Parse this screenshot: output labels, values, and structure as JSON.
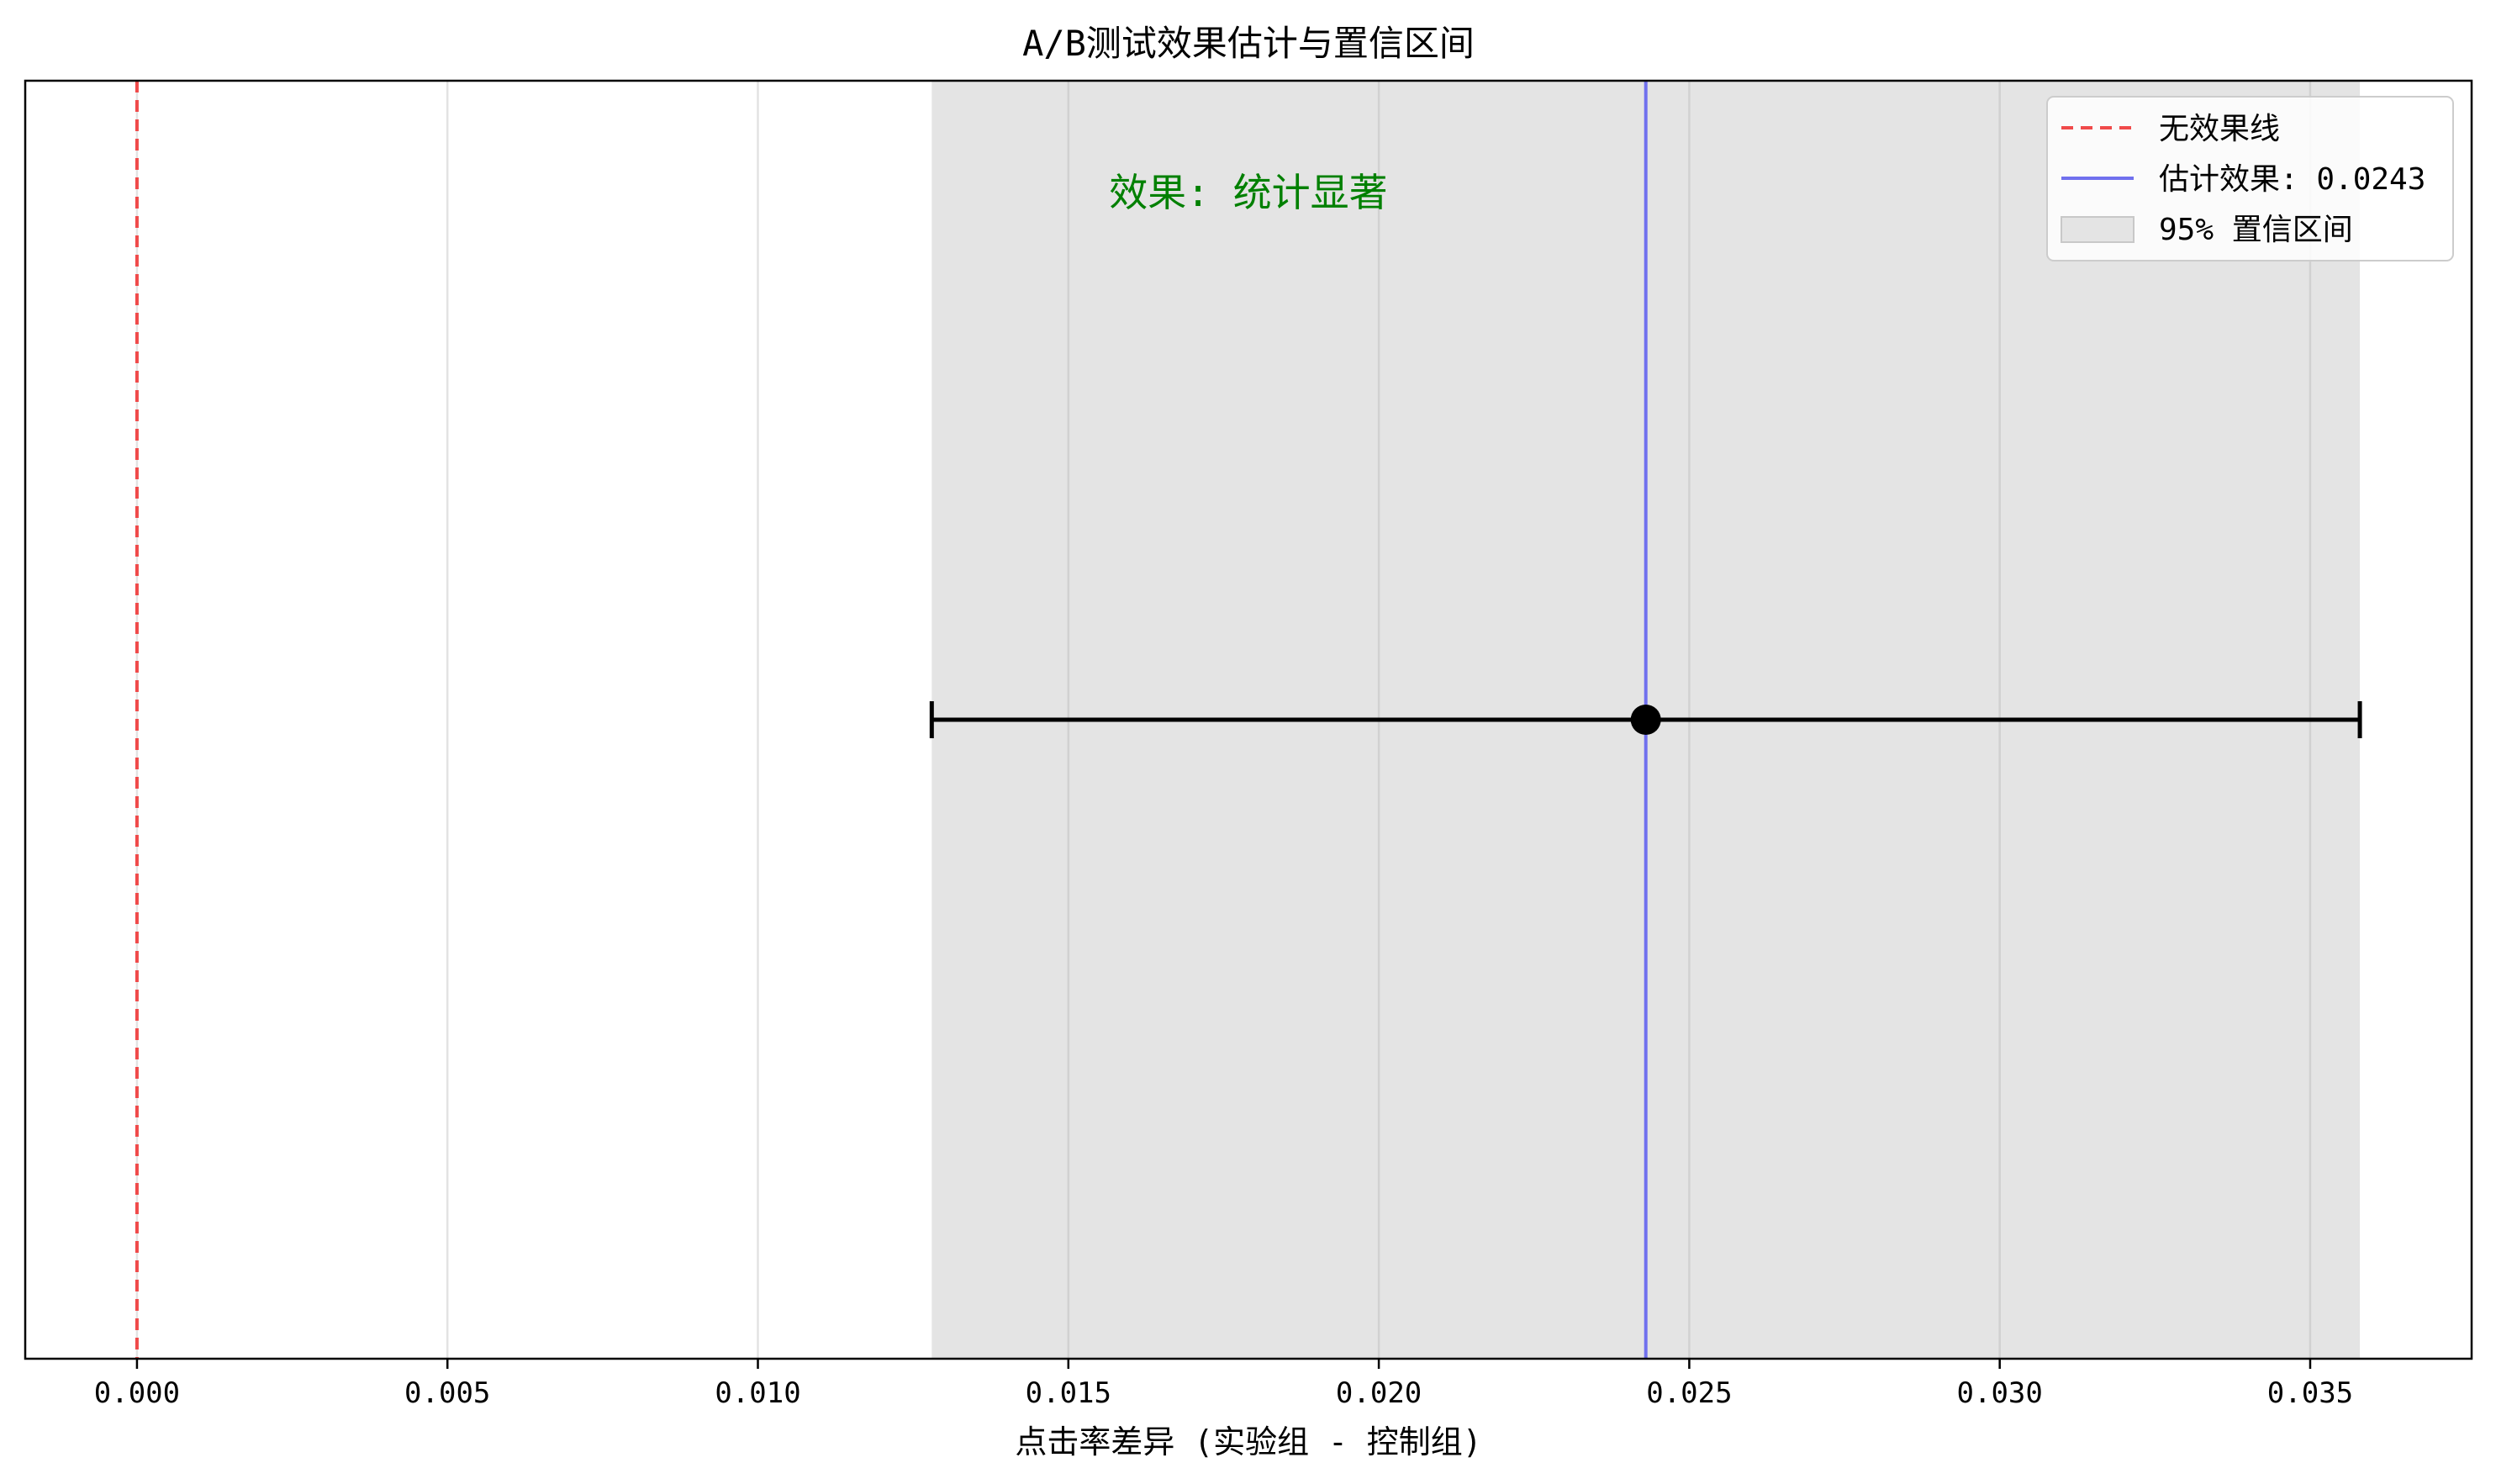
{
  "chart_data": {
    "type": "errorbar",
    "title": "A/B测试效果估计与置信区间",
    "xlabel": "点击率差异 (实验组 - 控制组)",
    "ylabel": "",
    "xlim": [
      -0.0018,
      0.0376
    ],
    "xticks": [
      0.0,
      0.005,
      0.01,
      0.015,
      0.02,
      0.025,
      0.03,
      0.035
    ],
    "xtick_labels": [
      "0.000",
      "0.005",
      "0.010",
      "0.015",
      "0.020",
      "0.025",
      "0.030",
      "0.035"
    ],
    "grid": "x",
    "null_line": {
      "x": 0.0,
      "label": "无效果线",
      "color": "#f04a4a",
      "style": "dashed"
    },
    "estimate": {
      "x": 0.0243,
      "label": "估计效果: 0.0243",
      "color": "#7070ee"
    },
    "confidence_interval": {
      "lower": 0.0128,
      "upper": 0.0358,
      "label": "95% 置信区间",
      "color": "#e4e4e4"
    },
    "point": {
      "x": 0.0243,
      "color": "#000000"
    },
    "annotation": {
      "text": "效果: 统计显著",
      "x": 0.0179,
      "color": "#008000"
    },
    "legend_position": "top-right"
  }
}
